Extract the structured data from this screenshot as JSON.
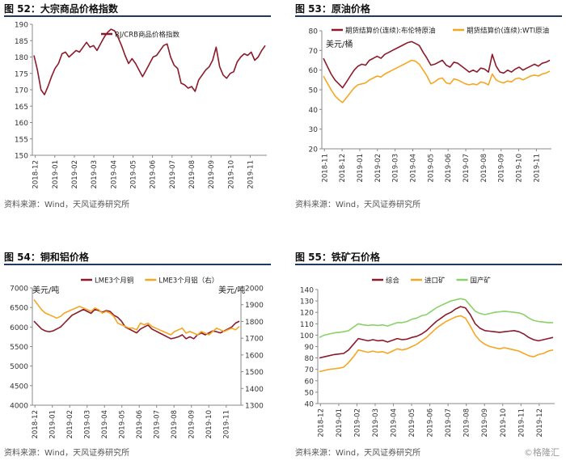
{
  "panels": [
    {
      "title": "图 52：大宗商品价格指数",
      "source": "资料来源：Wind，天风证券研究所"
    },
    {
      "title": "图 53：原油价格",
      "source": "资料来源：Wind，天风证券研究所"
    },
    {
      "title": "图 54：铜和铝价格",
      "source": "资料来源：Wind，天风证券研究所"
    },
    {
      "title": "图 55：铁矿石价格",
      "source": "资料来源：Wind，天风证券研究所"
    }
  ],
  "watermark": "©格隆汇",
  "chart_data": [
    {
      "id": "crb",
      "type": "line",
      "title": "图 52：大宗商品价格指数",
      "x_ticks": [
        "2018-12",
        "2019-01",
        "2019-02",
        "2019-03",
        "2019-04",
        "2019-05",
        "2019-06",
        "2019-07",
        "2019-08",
        "2019-09",
        "2019-10",
        "2019-11"
      ],
      "y_ticks": [
        150,
        155,
        160,
        165,
        170,
        175,
        180,
        185,
        190
      ],
      "ylim": [
        150,
        190
      ],
      "legend_position": "top-left",
      "series": [
        {
          "name": "RJ/CRB商品价格指数",
          "color": "#8b1a2b",
          "axis": "left",
          "values": [
            180.5,
            176,
            170,
            168.5,
            171,
            174,
            176.5,
            178,
            181,
            181.5,
            180,
            181,
            182,
            181.5,
            183,
            184.5,
            183,
            183.5,
            182,
            184,
            186,
            187.5,
            188.5,
            188,
            186,
            183.5,
            180.5,
            178,
            179.5,
            178,
            176,
            174,
            176,
            178,
            180,
            180.5,
            182,
            183.5,
            184,
            180,
            177.5,
            176.5,
            172,
            171.5,
            170.5,
            171,
            169.5,
            173,
            174.5,
            176,
            177,
            179,
            183,
            177,
            174.5,
            173.5,
            175,
            175.5,
            178.5,
            180,
            181,
            180.5,
            181.5,
            179,
            180,
            182,
            183.5
          ]
        }
      ]
    },
    {
      "id": "oil",
      "type": "line",
      "title": "图 53：原油价格",
      "unit_label": "美元/桶",
      "x_ticks": [
        "2018-11",
        "2018-12",
        "2019-01",
        "2019-02",
        "2019-03",
        "2019-04",
        "2019-05",
        "2019-06",
        "2019-07",
        "2019-08",
        "2019-09",
        "2019-10",
        "2019-11"
      ],
      "y_ticks": [
        20,
        30,
        40,
        50,
        60,
        70,
        80
      ],
      "ylim": [
        20,
        80
      ],
      "legend_position": "top",
      "series": [
        {
          "name": "期货结算价(连续):布伦特原油",
          "color": "#8b1a2b",
          "axis": "left",
          "values": [
            66,
            62,
            58,
            55,
            53,
            51,
            54,
            57,
            60,
            62,
            63,
            62.5,
            65,
            66,
            67,
            66,
            68,
            69,
            70,
            71,
            72,
            73,
            74,
            74.5,
            73.5,
            72.5,
            69,
            66,
            62.5,
            63,
            64,
            65,
            62.5,
            61.5,
            64,
            63.5,
            62,
            60.5,
            59,
            60,
            59,
            61,
            60.5,
            59,
            68,
            62,
            59,
            58.5,
            60,
            59,
            60.5,
            61.5,
            60,
            61,
            62,
            63,
            62,
            63.5,
            64,
            65
          ]
        },
        {
          "name": "期货结算价(连续):WTI原油",
          "color": "#f5a623",
          "axis": "left",
          "values": [
            57,
            53.5,
            50,
            47,
            45,
            43.5,
            46,
            48.5,
            51,
            52.5,
            53,
            53.5,
            55,
            56,
            57,
            56.5,
            58,
            59,
            60,
            61,
            62,
            63,
            64,
            65,
            64.5,
            63,
            60,
            57,
            53,
            54,
            55.5,
            56,
            53.5,
            53,
            55.5,
            55,
            54,
            53,
            52.5,
            53,
            52.5,
            54,
            53.5,
            52.5,
            58,
            55,
            54,
            53.5,
            54.5,
            54,
            55.5,
            56,
            55,
            56,
            57,
            57.5,
            57,
            58,
            58.5,
            59.5
          ]
        }
      ]
    },
    {
      "id": "copper_aluminum",
      "type": "line",
      "title": "图 54：铜和铝价格",
      "unit_label_left": "美元/吨",
      "unit_label_right": "美元/吨",
      "x_ticks": [
        "2018-12",
        "2019-01",
        "2019-02",
        "2019-03",
        "2019-04",
        "2019-05",
        "2019-06",
        "2019-07",
        "2019-08",
        "2019-09",
        "2019-10",
        "2019-11"
      ],
      "y_ticks_left": [
        4000,
        4500,
        5000,
        5500,
        6000,
        6500,
        7000
      ],
      "ylim_left": [
        4000,
        7000
      ],
      "y_ticks_right": [
        1300,
        1400,
        1500,
        1600,
        1700,
        1800,
        1900,
        2000
      ],
      "ylim_right": [
        1300,
        2000
      ],
      "legend_position": "top",
      "series": [
        {
          "name": "LME3个月铜",
          "color": "#8b1a2b",
          "axis": "left",
          "values": [
            6150,
            6050,
            5950,
            5900,
            5880,
            5900,
            5950,
            6000,
            6100,
            6200,
            6300,
            6350,
            6400,
            6450,
            6400,
            6350,
            6450,
            6420,
            6380,
            6420,
            6400,
            6300,
            6250,
            6150,
            6000,
            5950,
            5900,
            5850,
            5950,
            6000,
            6050,
            5950,
            5900,
            5850,
            5800,
            5750,
            5700,
            5720,
            5750,
            5800,
            5700,
            5750,
            5700,
            5800,
            5850,
            5800,
            5850,
            5900,
            5880,
            5850,
            5900,
            5950,
            6000,
            6100,
            6150
          ]
        },
        {
          "name": "LME3个月铝（右）",
          "color": "#f5a623",
          "axis": "right",
          "values": [
            1930,
            1900,
            1870,
            1850,
            1840,
            1830,
            1820,
            1830,
            1850,
            1860,
            1870,
            1880,
            1890,
            1880,
            1870,
            1860,
            1880,
            1870,
            1850,
            1860,
            1850,
            1830,
            1790,
            1780,
            1770,
            1760,
            1760,
            1750,
            1790,
            1780,
            1790,
            1770,
            1760,
            1750,
            1740,
            1730,
            1720,
            1740,
            1750,
            1760,
            1730,
            1740,
            1730,
            1720,
            1740,
            1730,
            1720,
            1740,
            1760,
            1750,
            1740,
            1750,
            1760,
            1750,
            1770
          ]
        }
      ]
    },
    {
      "id": "iron_ore",
      "type": "line",
      "title": "图 55：铁矿石价格",
      "x_ticks": [
        "2018-12",
        "2019-01",
        "2019-02",
        "2019-03",
        "2019-04",
        "2019-05",
        "2019-06",
        "2019-07",
        "2019-08",
        "2019-09",
        "2019-10",
        "2019-11",
        "2019-12"
      ],
      "y_ticks": [
        40,
        50,
        60,
        70,
        80,
        90,
        100,
        110,
        120,
        130,
        140
      ],
      "ylim": [
        40,
        140
      ],
      "legend_position": "top",
      "series": [
        {
          "name": "综合",
          "color": "#8b1a2b",
          "axis": "left",
          "values": [
            80,
            81,
            82,
            83,
            83.5,
            84,
            87,
            92,
            97,
            96,
            95,
            96,
            95,
            95.5,
            94,
            95.5,
            97,
            96,
            96.5,
            98,
            99,
            101,
            104,
            108,
            112,
            115,
            118,
            120,
            123,
            125,
            124,
            118,
            110,
            106,
            104,
            103.5,
            103,
            102.5,
            103,
            103.5,
            104,
            103,
            101,
            98,
            96,
            95,
            96,
            97,
            98
          ]
        },
        {
          "name": "进口矿",
          "color": "#f5a623",
          "axis": "left",
          "values": [
            68,
            69,
            70,
            70.5,
            71,
            72,
            76,
            81,
            87,
            86,
            85,
            86,
            85,
            85.5,
            84,
            86,
            88,
            87,
            88,
            90,
            92,
            95,
            98,
            102,
            106,
            109,
            112,
            114,
            116,
            117,
            115,
            108,
            100,
            95,
            92,
            90,
            89,
            88,
            89,
            88,
            87,
            86,
            84,
            82,
            81,
            83,
            84,
            86,
            87
          ]
        },
        {
          "name": "国产矿",
          "color": "#8bd16a",
          "axis": "left",
          "values": [
            98,
            100,
            101,
            102,
            102.5,
            103,
            104,
            107,
            110,
            109,
            108.5,
            109,
            108.5,
            109,
            108,
            109.5,
            111,
            111,
            112,
            114,
            115,
            117,
            118,
            121,
            124,
            126,
            128,
            130,
            131,
            132,
            131,
            126,
            121,
            119,
            118,
            119,
            120,
            120.5,
            121,
            120.5,
            120,
            119.5,
            118,
            115,
            113,
            112,
            111.5,
            111,
            111
          ]
        }
      ]
    }
  ]
}
